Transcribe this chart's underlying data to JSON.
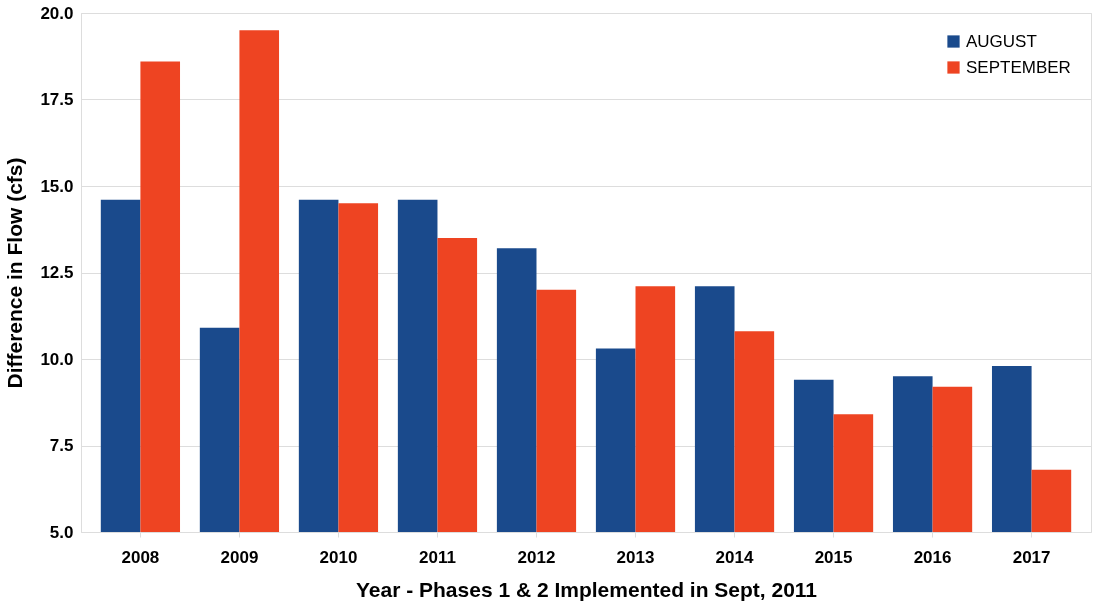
{
  "chart_data": {
    "type": "bar",
    "xlabel": "Year - Phases 1 & 2 Implemented in Sept, 2011",
    "ylabel": "Difference in Flow (cfs)",
    "categories": [
      "2008",
      "2009",
      "2010",
      "2011",
      "2012",
      "2013",
      "2014",
      "2015",
      "2016",
      "2017"
    ],
    "series": [
      {
        "name": "AUGUST",
        "color": "#1a4a8c",
        "values": [
          14.6,
          10.9,
          14.6,
          14.6,
          13.2,
          10.3,
          12.1,
          9.4,
          9.5,
          9.8
        ]
      },
      {
        "name": "SEPTEMBER",
        "color": "#ee4422",
        "values": [
          18.6,
          19.5,
          14.5,
          13.5,
          12.0,
          12.1,
          10.8,
          8.4,
          9.2,
          6.8
        ]
      }
    ],
    "ylim": [
      5.0,
      20.0
    ],
    "yticks": [
      {
        "value": 5,
        "label": "5.0"
      },
      7.5,
      {
        "value": 10,
        "label": "10.0"
      },
      12.5,
      {
        "value": 15,
        "label": "15.0"
      },
      17.5,
      {
        "value": 20,
        "label": "20.0"
      }
    ],
    "grid": "y",
    "legend": "top right"
  }
}
